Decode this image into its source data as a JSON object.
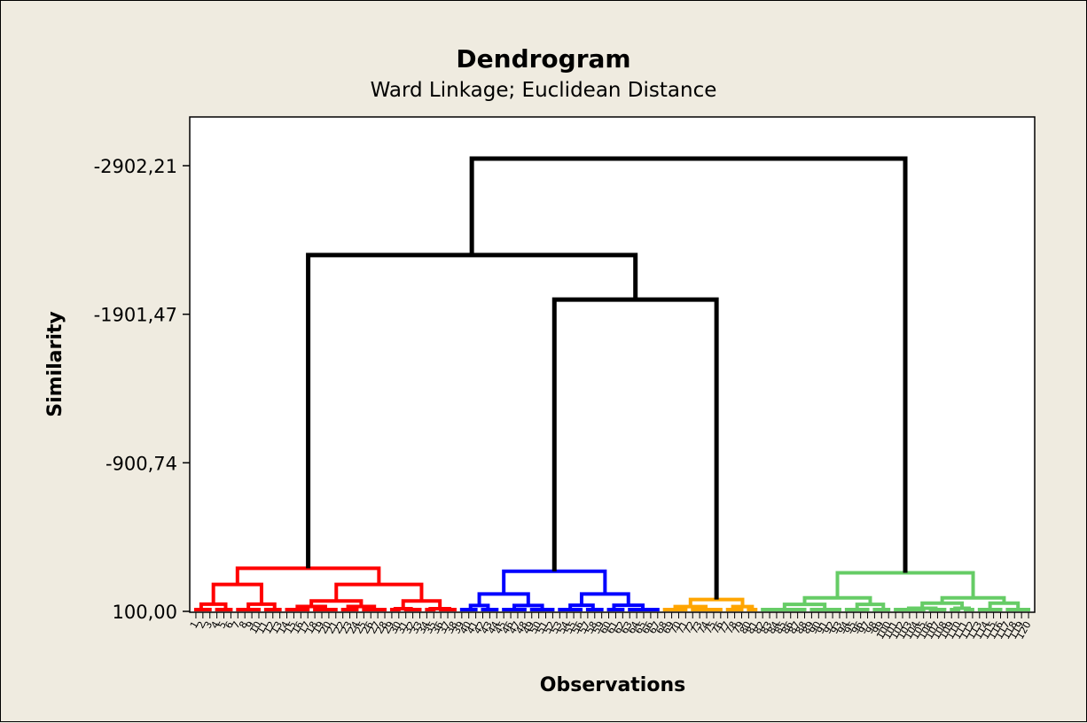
{
  "chart_data": {
    "type": "dendrogram",
    "title": "Dendrogram",
    "subtitle": "Ward Linkage; Euclidean Distance",
    "xlabel": "Observations",
    "ylabel": "Similarity",
    "y_ticks": [
      "-2902,21",
      "-1901,47",
      "-900,74",
      "100,00"
    ],
    "y_tick_values": [
      -2902.21,
      -1901.47,
      -900.74,
      100.0
    ],
    "ylim": [
      100.0,
      -3260
    ],
    "observation_count": 120,
    "colors": {
      "cluster_1": "#ff0000",
      "cluster_2": "#0000ff",
      "cluster_3": "#ffa500",
      "cluster_4": "#66cc66",
      "links": "#000000"
    },
    "clusters": [
      {
        "color": "cluster_1",
        "observations": [
          0,
          37
        ],
        "merge_height": -190
      },
      {
        "color": "cluster_2",
        "observations": [
          38,
          66
        ],
        "merge_height": -170
      },
      {
        "color": "cluster_3",
        "observations": [
          67,
          80
        ],
        "merge_height": 20
      },
      {
        "color": "cluster_4",
        "observations": [
          81,
          119
        ],
        "merge_height": -160
      }
    ],
    "links": [
      {
        "left": "cluster_2",
        "right": "cluster_3",
        "height": -2000
      },
      {
        "left": "cluster_1",
        "right": "cluster_2+cluster_3",
        "height": -2300
      },
      {
        "left": "cluster_1+cluster_2+cluster_3",
        "right": "cluster_4",
        "height": -2950
      }
    ]
  }
}
